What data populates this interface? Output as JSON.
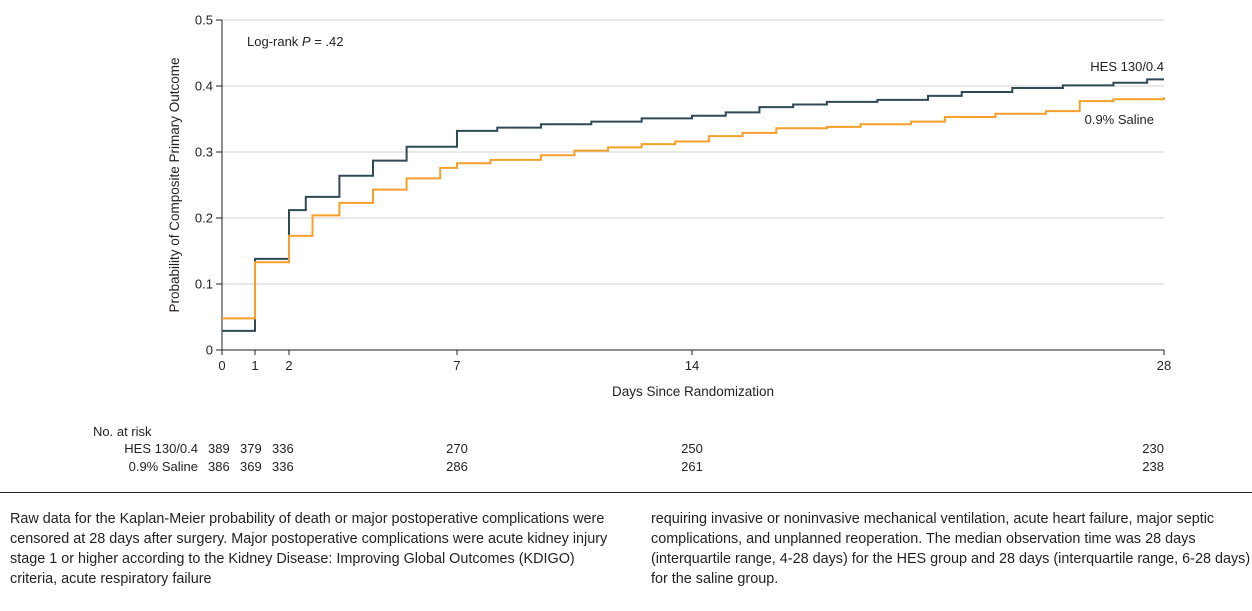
{
  "chart_data": {
    "type": "line",
    "step": true,
    "ylabel": "Probability of Composite Primary Outcome",
    "xlabel": "Days Since Randomization",
    "xlim": [
      0,
      28
    ],
    "ylim": [
      0,
      0.5
    ],
    "x_scale": "piecewise",
    "x_ticks": [
      0,
      1,
      2,
      7,
      14,
      28
    ],
    "x_tick_labels": [
      "0",
      "1",
      "2",
      "7",
      "14",
      "28"
    ],
    "y_ticks": [
      0,
      0.1,
      0.2,
      0.3,
      0.4,
      0.5
    ],
    "y_tick_labels": [
      "0",
      "0.1",
      "0.2",
      "0.3",
      "0.4",
      "0.5"
    ],
    "grid": "horizontal",
    "annotation": {
      "prefix": "Log-rank ",
      "italic": "P",
      "suffix": " = .42"
    },
    "series": [
      {
        "name": "HES 130/0.4",
        "color": "#2f4a55",
        "x": [
          0,
          1,
          2,
          2.5,
          3.5,
          4.5,
          5.5,
          7,
          8.2,
          9.5,
          11,
          12.5,
          14,
          15,
          16,
          17,
          18,
          19.5,
          21,
          22,
          23.5,
          25,
          26.5,
          27.5,
          28
        ],
        "y": [
          0.029,
          0.138,
          0.212,
          0.232,
          0.264,
          0.287,
          0.308,
          0.332,
          0.337,
          0.342,
          0.346,
          0.351,
          0.355,
          0.36,
          0.368,
          0.372,
          0.376,
          0.379,
          0.385,
          0.391,
          0.397,
          0.401,
          0.405,
          0.41,
          0.41
        ]
      },
      {
        "name": "0.9% Saline",
        "color": "#f5a02a",
        "x": [
          0,
          1,
          2,
          2.7,
          3.5,
          4.5,
          5.5,
          6.5,
          7,
          8,
          9.5,
          10.5,
          11.5,
          12.5,
          13.5,
          14.5,
          15.5,
          16.5,
          18,
          19,
          20.5,
          21.5,
          23,
          24.5,
          25.5,
          26.5,
          28
        ],
        "y": [
          0.048,
          0.133,
          0.173,
          0.204,
          0.223,
          0.243,
          0.26,
          0.276,
          0.283,
          0.288,
          0.295,
          0.302,
          0.307,
          0.312,
          0.316,
          0.324,
          0.329,
          0.336,
          0.338,
          0.342,
          0.346,
          0.353,
          0.358,
          0.362,
          0.377,
          0.38,
          0.383
        ]
      }
    ],
    "risk_table": {
      "title": "No. at risk",
      "days": [
        0,
        1,
        2,
        7,
        14,
        28
      ],
      "rows": [
        {
          "label": "HES 130/0.4",
          "values": [
            "389",
            "379",
            "336",
            "270",
            "250",
            "230"
          ]
        },
        {
          "label": "0.9% Saline",
          "values": [
            "386",
            "369",
            "336",
            "286",
            "261",
            "238"
          ]
        }
      ]
    }
  },
  "caption": {
    "left": "Raw data for the Kaplan-Meier probability of death or major postoperative complications were censored at 28 days after surgery. Major postoperative complications were acute kidney injury stage 1 or higher according to the Kidney Disease: Improving Global Outcomes (KDIGO) criteria, acute respiratory failure",
    "right": "requiring invasive or noninvasive mechanical ventilation, acute heart failure, major septic complications, and unplanned reoperation. The median observation time was 28 days (interquartile range, 4-28 days) for the HES group and 28 days (interquartile range, 6-28 days) for the saline group."
  }
}
